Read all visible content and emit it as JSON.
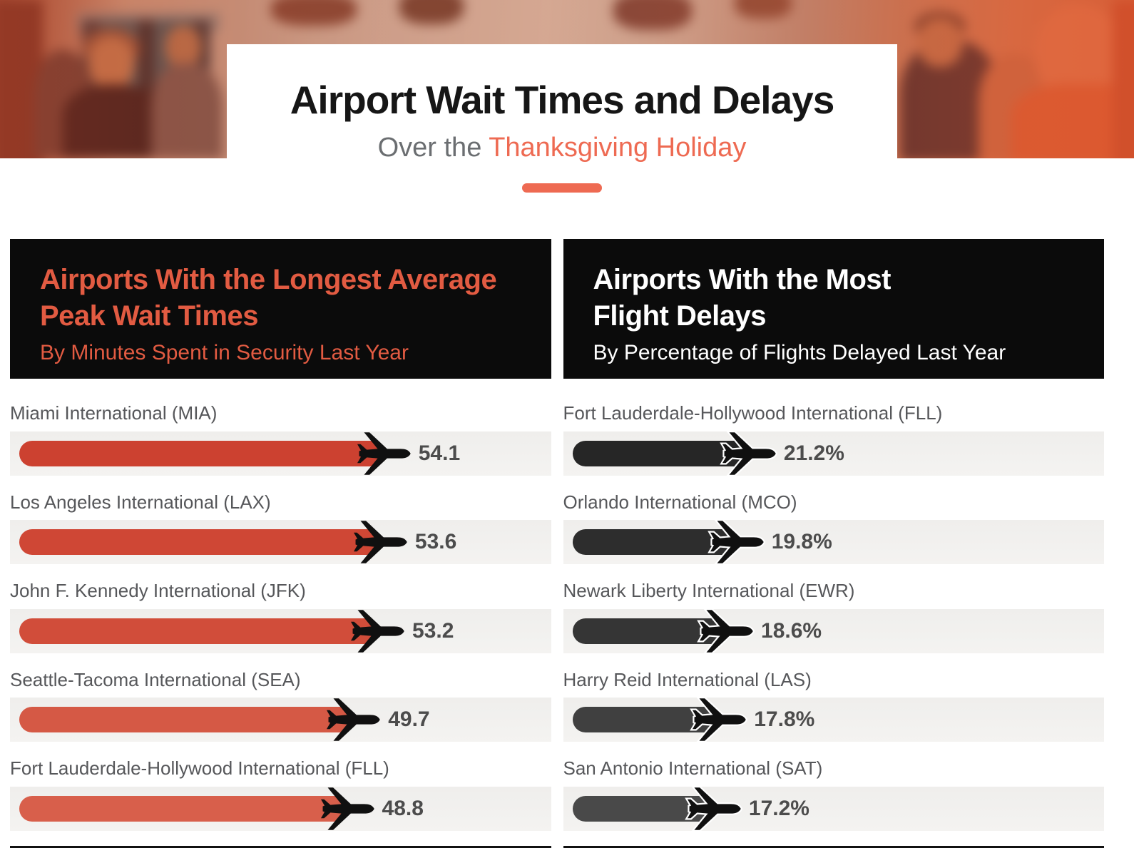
{
  "header": {
    "title": "Airport Wait Times and Delays",
    "subtitle_prefix": "Over the ",
    "subtitle_highlight": "Thanksgiving Holiday"
  },
  "colors": {
    "accent": "#ee6a52",
    "left_heading": "#e25b42",
    "panel_background": "#0b0b0b",
    "track": "#f2f1ef",
    "title_text": "#161616",
    "subtitle_gray": "#6b6e71",
    "label_text": "#56575a",
    "value_text": "#4c4c4c"
  },
  "icons": {
    "plane_solid": "plane-icon",
    "plane_outlined": "plane-outlined-icon"
  },
  "chart_data": [
    {
      "type": "bar",
      "orientation": "horizontal",
      "panel": "left",
      "title": "Airports With the Longest Average Peak Wait Times",
      "title_lines": [
        "Airports With the Longest Average",
        "Peak Wait Times"
      ],
      "subtitle": "By Minutes Spent in Security Last Year",
      "unit": "minutes",
      "legend": "none",
      "grid": false,
      "axis_max": 78.5,
      "categories": [
        "Miami International (MIA)",
        "Los Angeles International (LAX)",
        "John F. Kennedy International (JFK)",
        "Seattle-Tacoma International (SEA)",
        "Fort Lauderdale-Hollywood International (FLL)"
      ],
      "values": [
        54.1,
        53.6,
        53.2,
        49.7,
        48.8
      ],
      "value_labels": [
        "54.1",
        "53.6",
        "53.2",
        "49.7",
        "48.8"
      ],
      "bar_colors": [
        "#cc4130",
        "#cf4735",
        "#d14d3a",
        "#d55945",
        "#d85f4b"
      ],
      "plane_style": "solid"
    },
    {
      "type": "bar",
      "orientation": "horizontal",
      "panel": "right",
      "title": "Airports With the Most Flight Delays",
      "title_lines": [
        "Airports With the Most",
        "Flight Delays"
      ],
      "subtitle": "By Percentage of Flights Delayed Last Year",
      "unit": "percent",
      "legend": "none",
      "grid": false,
      "axis_max": 62,
      "categories": [
        "Fort Lauderdale-Hollywood International (FLL)",
        "Orlando International (MCO)",
        "Newark Liberty International (EWR)",
        "Harry Reid International (LAS)",
        "San Antonio International (SAT)"
      ],
      "values": [
        21.2,
        19.8,
        18.6,
        17.8,
        17.2
      ],
      "value_labels": [
        "21.2%",
        "19.8%",
        "18.6%",
        "17.8%",
        "17.2%"
      ],
      "bar_colors": [
        "#262626",
        "#2d2d2d",
        "#353535",
        "#404040",
        "#494949"
      ],
      "plane_style": "outlined"
    }
  ]
}
